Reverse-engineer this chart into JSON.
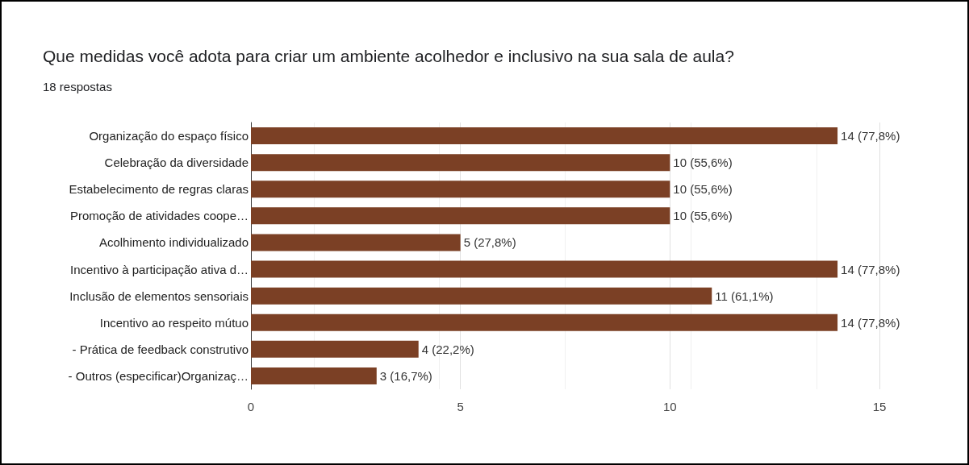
{
  "chart_data": {
    "type": "bar",
    "orientation": "horizontal",
    "title": "Que medidas você adota para criar um ambiente acolhedor e inclusivo na sua sala de aula?",
    "subtitle": "18 respostas",
    "categories": [
      "Organização do espaço físico",
      "Celebração da diversidade",
      "Estabelecimento de regras claras",
      "Promoção de atividades coope…",
      "Acolhimento individualizado",
      "Incentivo à participação ativa d…",
      "Inclusão de elementos sensoriais",
      "Incentivo ao respeito mútuo",
      "- Prática de feedback construtivo",
      "- Outros (especificar)Organizaç…"
    ],
    "values": [
      14,
      10,
      10,
      10,
      5,
      14,
      11,
      14,
      4,
      3
    ],
    "value_labels": [
      "14 (77,8%)",
      "10 (55,6%)",
      "10 (55,6%)",
      "10 (55,6%)",
      "5 (27,8%)",
      "14 (77,8%)",
      "11 (61,1%)",
      "14 (77,8%)",
      "4 (22,2%)",
      "3 (16,7%)"
    ],
    "color": "#7b4025",
    "xlim": [
      0,
      15
    ],
    "xticks": [
      0,
      5,
      10,
      15
    ],
    "grid": "x"
  }
}
